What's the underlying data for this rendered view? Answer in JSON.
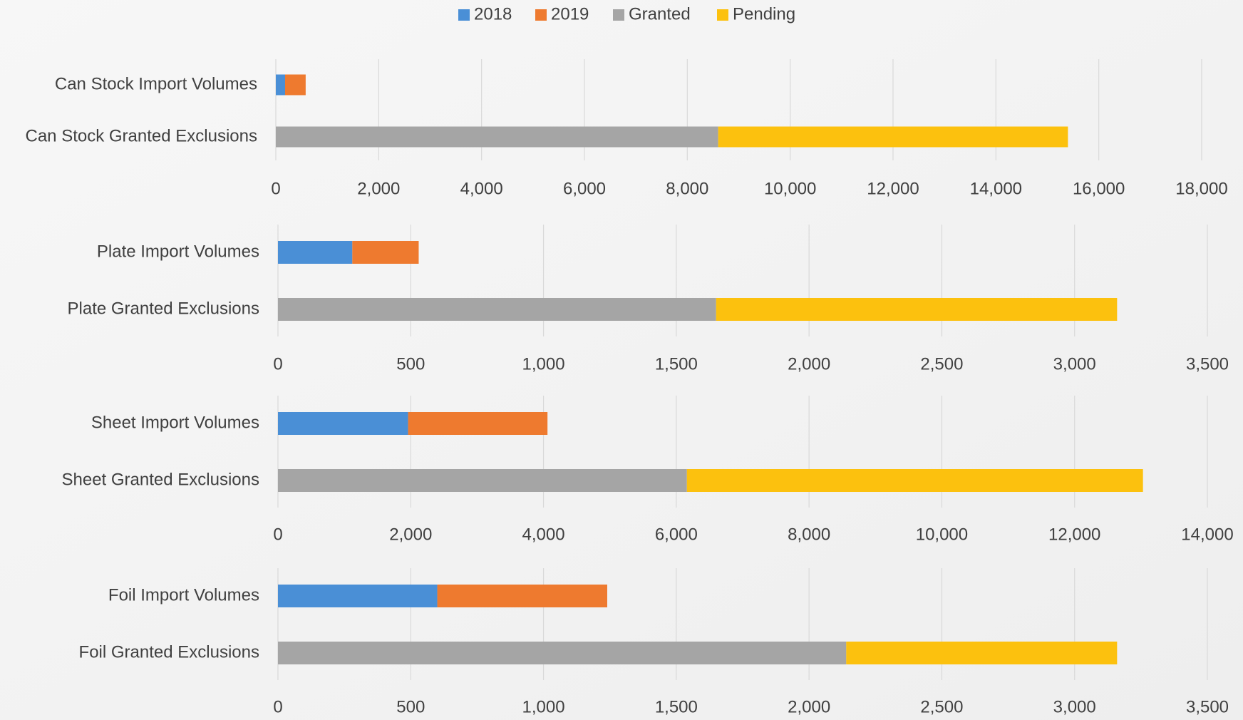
{
  "chart_data": [
    {
      "type": "bar",
      "orientation": "horizontal",
      "stacked": true,
      "grid": true,
      "categories": [
        "Can Stock Import Volumes",
        "Can Stock Granted Exclusions"
      ],
      "series": [
        {
          "name": "2018",
          "color": "#4a8fd6",
          "values": [
            180,
            null
          ]
        },
        {
          "name": "2019",
          "color": "#ee7a2f",
          "values": [
            400,
            null
          ]
        },
        {
          "name": "Granted",
          "color": "#a5a5a5",
          "values": [
            null,
            8600
          ]
        },
        {
          "name": "Pending",
          "color": "#fcc10e",
          "values": [
            null,
            6800
          ]
        }
      ],
      "xlim": [
        0,
        18000
      ],
      "xticks": [
        0,
        {
          "value": 2000,
          "label": "2,000"
        },
        {
          "value": 4000,
          "label": "4,000"
        },
        {
          "value": 6000,
          "label": "6,000"
        },
        {
          "value": 8000,
          "label": "8,000"
        },
        {
          "value": 10000,
          "label": "10,000"
        },
        {
          "value": 12000,
          "label": "12,000"
        },
        {
          "value": 14000,
          "label": "14,000"
        },
        {
          "value": 16000,
          "label": "16,000"
        },
        {
          "value": 18000,
          "label": "18,000"
        }
      ]
    },
    {
      "type": "bar",
      "orientation": "horizontal",
      "stacked": true,
      "grid": true,
      "categories": [
        "Plate Import Volumes",
        "Plate Granted Exclusions"
      ],
      "series": [
        {
          "name": "2018",
          "color": "#4a8fd6",
          "values": [
            280,
            null
          ]
        },
        {
          "name": "2019",
          "color": "#ee7a2f",
          "values": [
            250,
            null
          ]
        },
        {
          "name": "Granted",
          "color": "#a5a5a5",
          "values": [
            null,
            1650
          ]
        },
        {
          "name": "Pending",
          "color": "#fcc10e",
          "values": [
            null,
            1510
          ]
        }
      ],
      "xlim": [
        0,
        3500
      ],
      "xticks": [
        0,
        500,
        {
          "value": 1000,
          "label": "1,000"
        },
        {
          "value": 1500,
          "label": "1,500"
        },
        {
          "value": 2000,
          "label": "2,000"
        },
        {
          "value": 2500,
          "label": "2,500"
        },
        {
          "value": 3000,
          "label": "3,000"
        },
        {
          "value": 3500,
          "label": "3,500"
        }
      ]
    },
    {
      "type": "bar",
      "orientation": "horizontal",
      "stacked": true,
      "grid": true,
      "categories": [
        "Sheet Import Volumes",
        "Sheet Granted Exclusions"
      ],
      "series": [
        {
          "name": "2018",
          "color": "#4a8fd6",
          "values": [
            1960,
            null
          ]
        },
        {
          "name": "2019",
          "color": "#ee7a2f",
          "values": [
            2100,
            null
          ]
        },
        {
          "name": "Granted",
          "color": "#a5a5a5",
          "values": [
            null,
            6160
          ]
        },
        {
          "name": "Pending",
          "color": "#fcc10e",
          "values": [
            null,
            6870
          ]
        }
      ],
      "xlim": [
        0,
        14000
      ],
      "xticks": [
        0,
        {
          "value": 2000,
          "label": "2,000"
        },
        {
          "value": 4000,
          "label": "4,000"
        },
        {
          "value": 6000,
          "label": "6,000"
        },
        {
          "value": 8000,
          "label": "8,000"
        },
        {
          "value": 10000,
          "label": "10,000"
        },
        {
          "value": 12000,
          "label": "12,000"
        },
        {
          "value": 14000,
          "label": "14,000"
        }
      ]
    },
    {
      "type": "bar",
      "orientation": "horizontal",
      "stacked": true,
      "grid": true,
      "categories": [
        "Foil Import Volumes",
        "Foil Granted Exclusions"
      ],
      "series": [
        {
          "name": "2018",
          "color": "#4a8fd6",
          "values": [
            600,
            null
          ]
        },
        {
          "name": "2019",
          "color": "#ee7a2f",
          "values": [
            640,
            null
          ]
        },
        {
          "name": "Granted",
          "color": "#a5a5a5",
          "values": [
            null,
            2140
          ]
        },
        {
          "name": "Pending",
          "color": "#fcc10e",
          "values": [
            null,
            1020
          ]
        }
      ],
      "xlim": [
        0,
        3500
      ],
      "xticks": [
        0,
        500,
        {
          "value": 1000,
          "label": "1,000"
        },
        {
          "value": 1500,
          "label": "1,500"
        },
        {
          "value": 2000,
          "label": "2,000"
        },
        {
          "value": 2500,
          "label": "2,500"
        },
        {
          "value": 3000,
          "label": "3,000"
        },
        {
          "value": 3500,
          "label": "3,500"
        }
      ]
    }
  ]
}
